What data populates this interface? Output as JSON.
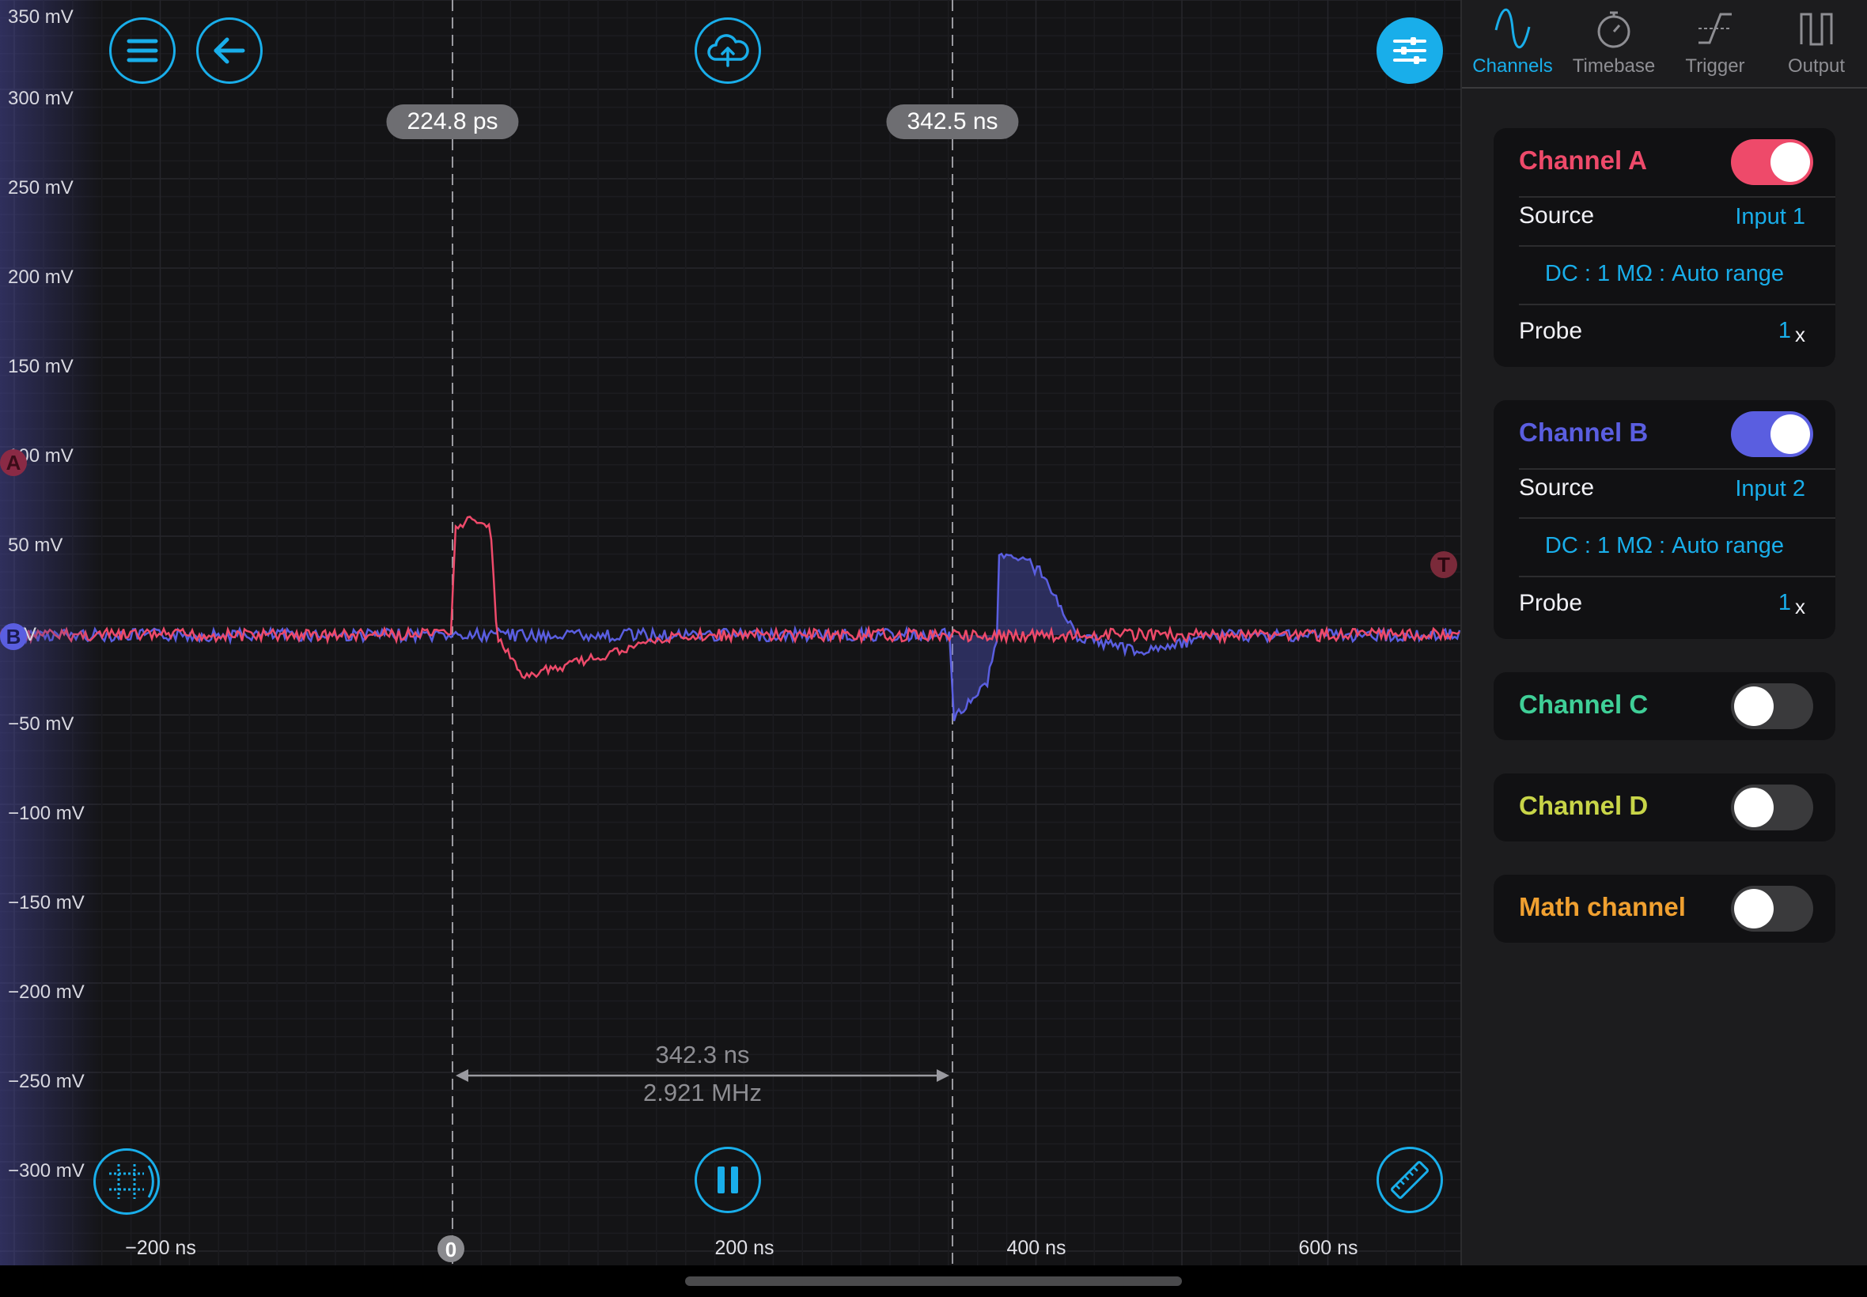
{
  "y_axis_labels": [
    "350 mV",
    "300 mV",
    "250 mV",
    "200 mV",
    "150 mV",
    "100 mV",
    "50 mV",
    "0 V",
    "−50 mV",
    "−100 mV",
    "−150 mV",
    "−200 mV",
    "−250 mV",
    "−300 mV"
  ],
  "x_axis_labels": [
    "−200 ns",
    "200 ns",
    "400 ns",
    "600 ns"
  ],
  "zero_marker": "0",
  "cursors": {
    "left_time": "224.8 ps",
    "right_time": "342.5 ns"
  },
  "measurement": {
    "delta_time": "342.3 ns",
    "frequency": "2.921 MHz"
  },
  "markers": {
    "channel_a": "A",
    "channel_b": "B",
    "trigger": "T"
  },
  "toolbar": {
    "menu_icon": "hamburger-menu-icon",
    "back_icon": "back-arrow-icon",
    "cloud_icon": "cloud-upload-icon",
    "settings_icon": "sliders-icon",
    "grid_icon": "grid-crosshair-icon",
    "pause_icon": "pause-icon",
    "ruler_icon": "ruler-icon"
  },
  "tabs": [
    {
      "label": "Channels",
      "icon": "sine-wave-icon",
      "active": true
    },
    {
      "label": "Timebase",
      "icon": "stopwatch-icon",
      "active": false
    },
    {
      "label": "Trigger",
      "icon": "trigger-edge-icon",
      "active": false
    },
    {
      "label": "Output",
      "icon": "square-wave-icon",
      "active": false
    }
  ],
  "channels": {
    "a": {
      "name": "Channel A",
      "enabled": true,
      "source_label": "Source",
      "source_value": "Input 1",
      "coupling": "DC : 1 MΩ : Auto range",
      "probe_label": "Probe",
      "probe_value": "1",
      "probe_unit": "x",
      "color": "#ee4a6a"
    },
    "b": {
      "name": "Channel B",
      "enabled": true,
      "source_label": "Source",
      "source_value": "Input 2",
      "coupling": "DC : 1 MΩ : Auto range",
      "probe_label": "Probe",
      "probe_value": "1",
      "probe_unit": "x",
      "color": "#5a5ee0"
    },
    "c": {
      "name": "Channel C",
      "enabled": false,
      "color": "#3fcf97"
    },
    "d": {
      "name": "Channel D",
      "enabled": false,
      "color": "#c8d548"
    },
    "math": {
      "name": "Math channel",
      "enabled": false,
      "color": "#f0a030"
    }
  },
  "colors": {
    "accent": "#19aeea",
    "channel_a": "#ee4a6a",
    "channel_b": "#5a5ee0"
  }
}
